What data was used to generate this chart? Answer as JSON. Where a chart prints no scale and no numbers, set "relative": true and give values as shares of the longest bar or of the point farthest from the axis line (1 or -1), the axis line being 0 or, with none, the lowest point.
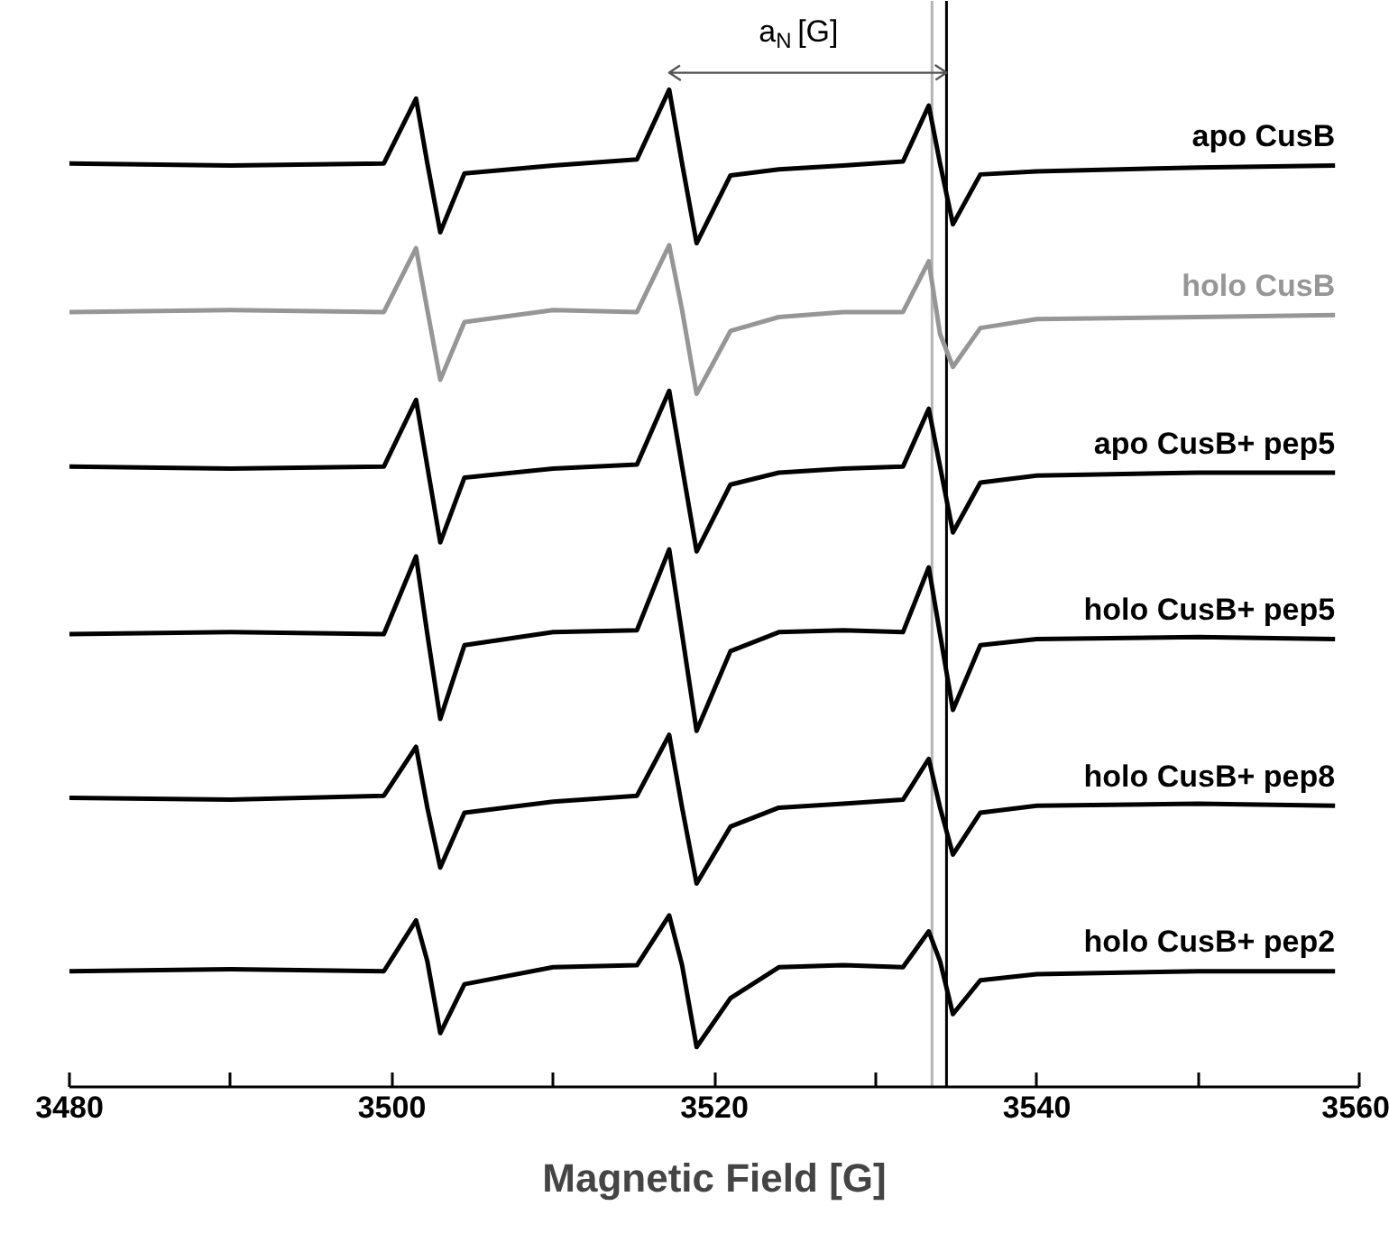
{
  "chart_data": {
    "type": "line",
    "relative": true,
    "xlabel": "Magnetic Field [G]",
    "x": [
      3480,
      3490,
      3499.5,
      3501.5,
      3502.2,
      3503,
      3504.5,
      3510,
      3515.2,
      3517.2,
      3518,
      3518.9,
      3521,
      3524,
      3528,
      3531.7,
      3533.3,
      3534,
      3534.8,
      3536.5,
      3540,
      3550,
      3558.5
    ],
    "xlim": [
      3480,
      3560
    ],
    "xticks": [
      3480,
      {
        "value": 3490,
        "label": null
      },
      3500,
      {
        "value": 3510,
        "label": null
      },
      3520,
      {
        "value": 3530,
        "label": null
      },
      3540,
      {
        "value": 3550,
        "label": null
      },
      3560
    ],
    "tick_labels": "x",
    "grid": false,
    "legend": false,
    "marker": "none",
    "line_style": "solid",
    "series": [
      {
        "name": "apo CusB",
        "color": "#000000",
        "values": [
          0.926,
          0.924,
          0.926,
          0.991,
          0.926,
          0.857,
          0.916,
          0.924,
          0.93,
          1.0,
          0.926,
          0.846,
          0.914,
          0.92,
          0.924,
          0.928,
          0.984,
          0.926,
          0.865,
          0.915,
          0.918,
          0.922,
          0.924
        ]
      },
      {
        "name": "holo CusB",
        "color": "#969696",
        "values": [
          0.777,
          0.779,
          0.777,
          0.841,
          0.779,
          0.709,
          0.767,
          0.779,
          0.777,
          0.844,
          0.779,
          0.695,
          0.758,
          0.772,
          0.777,
          0.777,
          0.828,
          0.755,
          0.722,
          0.761,
          0.77,
          0.772,
          0.774
        ]
      },
      {
        "name": "apo CusB+ pep5",
        "color": "#000000",
        "values": [
          0.622,
          0.62,
          0.622,
          0.689,
          0.622,
          0.546,
          0.611,
          0.62,
          0.624,
          0.698,
          0.622,
          0.537,
          0.604,
          0.616,
          0.62,
          0.622,
          0.68,
          0.622,
          0.556,
          0.606,
          0.613,
          0.616,
          0.616
        ]
      },
      {
        "name": "holo CusB+ pep5",
        "color": "#000000",
        "values": [
          0.454,
          0.456,
          0.454,
          0.532,
          0.454,
          0.369,
          0.443,
          0.456,
          0.458,
          0.539,
          0.454,
          0.357,
          0.437,
          0.456,
          0.458,
          0.456,
          0.521,
          0.454,
          0.378,
          0.443,
          0.449,
          0.451,
          0.449
        ]
      },
      {
        "name": "holo CusB+ pep8",
        "color": "#000000",
        "values": [
          0.29,
          0.288,
          0.292,
          0.341,
          0.28,
          0.22,
          0.275,
          0.286,
          0.292,
          0.353,
          0.28,
          0.204,
          0.261,
          0.28,
          0.284,
          0.288,
          0.329,
          0.28,
          0.233,
          0.275,
          0.282,
          0.284,
          0.282
        ]
      },
      {
        "name": "holo CusB+ pep2",
        "color": "#000000",
        "values": [
          0.116,
          0.118,
          0.116,
          0.167,
          0.126,
          0.054,
          0.103,
          0.12,
          0.122,
          0.172,
          0.122,
          0.04,
          0.089,
          0.12,
          0.122,
          0.12,
          0.156,
          0.126,
          0.073,
          0.107,
          0.113,
          0.116,
          0.116
        ]
      }
    ],
    "ref_lines": [
      {
        "axis": "x",
        "value": 3533.5,
        "color": "#b4b4b4",
        "line_style": "solid"
      },
      {
        "axis": "x",
        "value": 3534.4,
        "color": "#000000",
        "line_style": "solid"
      }
    ],
    "annotations": [
      "a$_{N}$ [G]"
    ]
  }
}
